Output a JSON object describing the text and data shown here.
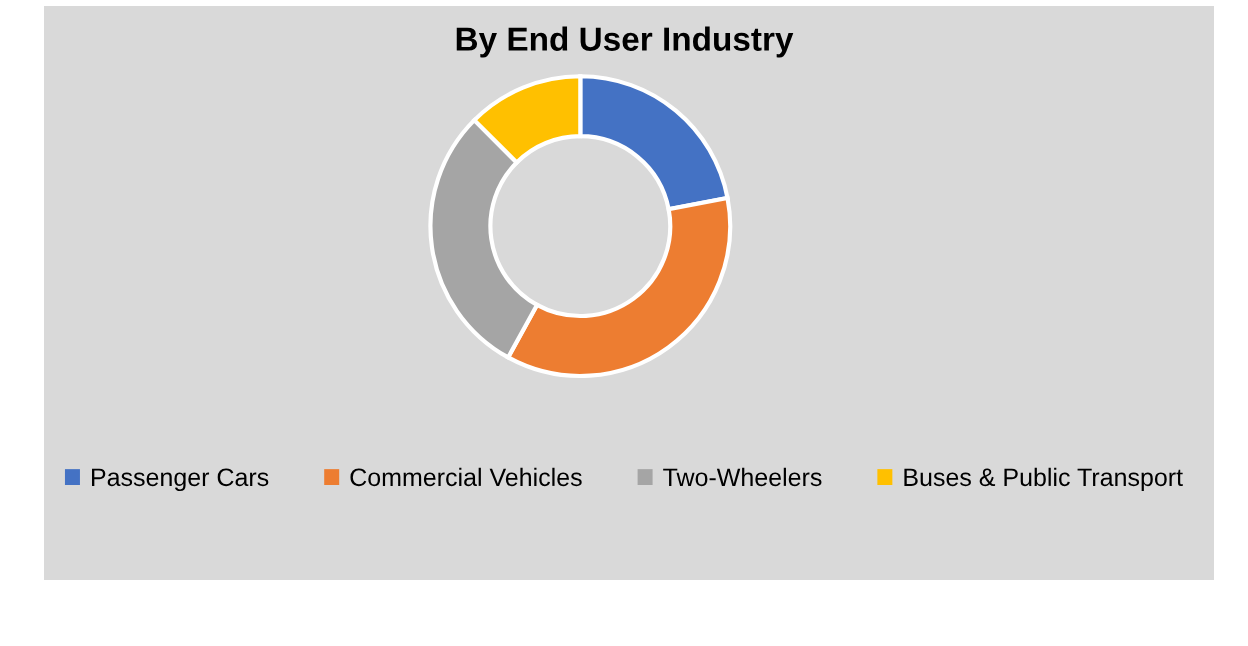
{
  "chart_data": {
    "type": "donut",
    "title": "By End User Industry",
    "categories": [
      "Passenger Cars",
      "Commercial Vehicles",
      "Two-Wheelers",
      "Buses & Public Transport"
    ],
    "values": [
      22,
      36,
      29.5,
      12.5
    ],
    "colors": [
      "#4472c4",
      "#ed7d31",
      "#a5a5a5",
      "#ffc000"
    ],
    "legend": "bottom"
  }
}
